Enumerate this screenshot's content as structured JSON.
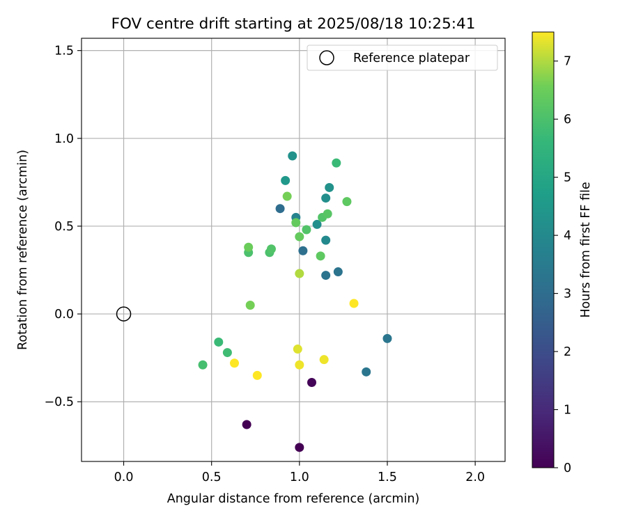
{
  "chart_data": {
    "type": "scatter",
    "title": "FOV centre drift starting at 2025/08/18 10:25:41",
    "xlabel": "Angular distance from reference (arcmin)",
    "ylabel": "Rotation from reference (arcmin)",
    "xlim": [
      -0.24,
      2.17
    ],
    "ylim": [
      -0.84,
      1.57
    ],
    "xticks": [
      0.0,
      0.5,
      1.0,
      1.5,
      2.0
    ],
    "xtick_labels": [
      "0.0",
      "0.5",
      "1.0",
      "1.5",
      "2.0"
    ],
    "yticks": [
      -0.5,
      0.0,
      0.5,
      1.0,
      1.5
    ],
    "ytick_labels": [
      "−0.5",
      "0.0",
      "0.5",
      "1.0",
      "1.5"
    ],
    "grid": true,
    "legend": {
      "placement": "top-right",
      "entries": [
        "Reference platepar"
      ]
    },
    "reference_point": {
      "label": "Reference platepar",
      "x": 0.0,
      "y": 0.0
    },
    "colorbar": {
      "label": "Hours from first FF file",
      "range": [
        0,
        7.5
      ],
      "ticks": [
        0,
        1,
        2,
        3,
        4,
        5,
        6,
        7
      ],
      "tick_labels": [
        "0",
        "1",
        "2",
        "3",
        "4",
        "5",
        "6",
        "7"
      ],
      "colormap": "viridis"
    },
    "series": [
      {
        "points": [
          {
            "x": 1.0,
            "y": -0.76,
            "h": 0.0
          },
          {
            "x": 0.7,
            "y": -0.63,
            "h": 0.0
          },
          {
            "x": 1.07,
            "y": -0.39,
            "h": 0.1
          },
          {
            "x": 1.5,
            "y": -0.14,
            "h": 3.3
          },
          {
            "x": 1.38,
            "y": -0.33,
            "h": 3.3
          },
          {
            "x": 1.22,
            "y": 0.24,
            "h": 3.2
          },
          {
            "x": 1.15,
            "y": 0.22,
            "h": 3.2
          },
          {
            "x": 1.02,
            "y": 0.36,
            "h": 3.1
          },
          {
            "x": 0.89,
            "y": 0.6,
            "h": 3.0
          },
          {
            "x": 0.98,
            "y": 0.55,
            "h": 3.8
          },
          {
            "x": 1.15,
            "y": 0.42,
            "h": 4.0
          },
          {
            "x": 1.1,
            "y": 0.51,
            "h": 4.2
          },
          {
            "x": 1.15,
            "y": 0.66,
            "h": 4.2
          },
          {
            "x": 1.17,
            "y": 0.72,
            "h": 4.3
          },
          {
            "x": 0.96,
            "y": 0.9,
            "h": 4.3
          },
          {
            "x": 0.92,
            "y": 0.76,
            "h": 4.5
          },
          {
            "x": 1.21,
            "y": 0.86,
            "h": 5.7
          },
          {
            "x": 0.54,
            "y": -0.16,
            "h": 5.7
          },
          {
            "x": 0.59,
            "y": -0.22,
            "h": 5.8
          },
          {
            "x": 0.45,
            "y": -0.29,
            "h": 5.9
          },
          {
            "x": 0.71,
            "y": 0.35,
            "h": 6.0
          },
          {
            "x": 0.83,
            "y": 0.35,
            "h": 6.0
          },
          {
            "x": 0.84,
            "y": 0.37,
            "h": 6.1
          },
          {
            "x": 1.04,
            "y": 0.48,
            "h": 6.1
          },
          {
            "x": 1.13,
            "y": 0.55,
            "h": 6.1
          },
          {
            "x": 1.16,
            "y": 0.57,
            "h": 6.2
          },
          {
            "x": 1.27,
            "y": 0.64,
            "h": 6.3
          },
          {
            "x": 1.12,
            "y": 0.33,
            "h": 6.3
          },
          {
            "x": 0.98,
            "y": 0.52,
            "h": 6.4
          },
          {
            "x": 1.0,
            "y": 0.44,
            "h": 6.4
          },
          {
            "x": 0.71,
            "y": 0.38,
            "h": 6.5
          },
          {
            "x": 0.93,
            "y": 0.67,
            "h": 6.6
          },
          {
            "x": 0.72,
            "y": 0.05,
            "h": 6.6
          },
          {
            "x": 1.0,
            "y": 0.23,
            "h": 7.0
          },
          {
            "x": 0.99,
            "y": -0.2,
            "h": 7.3
          },
          {
            "x": 1.0,
            "y": -0.29,
            "h": 7.4
          },
          {
            "x": 1.14,
            "y": -0.26,
            "h": 7.4
          },
          {
            "x": 0.63,
            "y": -0.28,
            "h": 7.5
          },
          {
            "x": 0.76,
            "y": -0.35,
            "h": 7.5
          },
          {
            "x": 1.31,
            "y": 0.06,
            "h": 7.5
          }
        ]
      }
    ]
  }
}
